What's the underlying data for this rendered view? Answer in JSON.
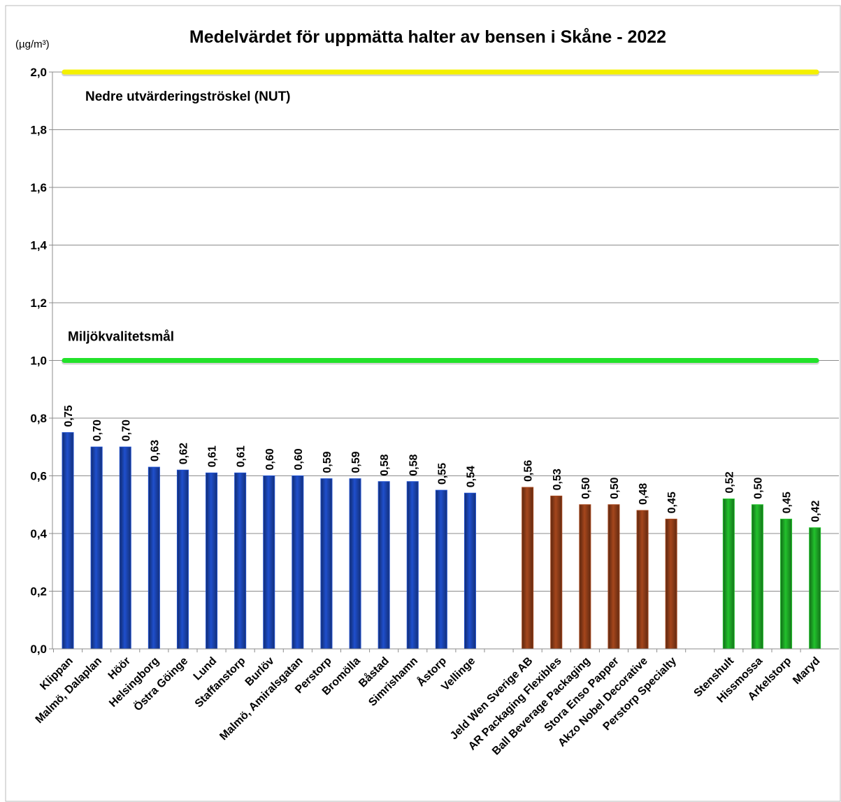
{
  "chart_data": {
    "type": "bar",
    "title": "Medelvärdet för uppmätta halter av bensen i Skåne - 2022",
    "y_axis_label": "(µg/m³)",
    "categories": [
      "Klippan",
      "Malmö, Dalaplan",
      "Höör",
      "Helsingborg",
      "Östra Göinge",
      "Lund",
      "Staffanstorp",
      "Burlöv",
      "Malmö, Amiralsgatan",
      "Perstorp",
      "Bromölla",
      "Båstad",
      "Simrishamn",
      "Åstorp",
      "Vellinge",
      null,
      "Jeld Wen Sverige AB",
      "AR Packaging Flexibles",
      "Ball Beverage Packaging",
      "Stora Enso Papper",
      "Akzo Nobel Decorative",
      "Perstorp Specialty",
      null,
      "Stenshult",
      "Hissmossa",
      "Arkelstorp",
      "Maryd"
    ],
    "series": [
      {
        "color": "#1f4fcc",
        "values": [
          0.75,
          0.7,
          0.7,
          0.63,
          0.62,
          0.61,
          0.61,
          0.6,
          0.6,
          0.59,
          0.59,
          0.58,
          0.58,
          0.55,
          0.54,
          null,
          null,
          null,
          null,
          null,
          null,
          null,
          null,
          null,
          null,
          null,
          null
        ],
        "value_labels": [
          "0,75",
          "0,70",
          "0,70",
          "0,63",
          "0,62",
          "0,61",
          "0,61",
          "0,60",
          "0,60",
          "0,59",
          "0,59",
          "0,58",
          "0,58",
          "0,55",
          "0,54",
          null,
          null,
          null,
          null,
          null,
          null,
          null,
          null,
          null,
          null,
          null,
          null
        ]
      },
      {
        "color": "#a5461c",
        "values": [
          null,
          null,
          null,
          null,
          null,
          null,
          null,
          null,
          null,
          null,
          null,
          null,
          null,
          null,
          null,
          null,
          0.56,
          0.53,
          0.5,
          0.5,
          0.48,
          0.45,
          null,
          null,
          null,
          null,
          null
        ],
        "value_labels": [
          null,
          null,
          null,
          null,
          null,
          null,
          null,
          null,
          null,
          null,
          null,
          null,
          null,
          null,
          null,
          null,
          "0,56",
          "0,53",
          "0,50",
          "0,50",
          "0,48",
          "0,45",
          null,
          null,
          null,
          null,
          null
        ]
      },
      {
        "color": "#22c12c",
        "values": [
          null,
          null,
          null,
          null,
          null,
          null,
          null,
          null,
          null,
          null,
          null,
          null,
          null,
          null,
          null,
          null,
          null,
          null,
          null,
          null,
          null,
          null,
          null,
          0.52,
          0.5,
          0.45,
          0.42
        ],
        "value_labels": [
          null,
          null,
          null,
          null,
          null,
          null,
          null,
          null,
          null,
          null,
          null,
          null,
          null,
          null,
          null,
          null,
          null,
          null,
          null,
          null,
          null,
          null,
          null,
          "0,52",
          "0,50",
          "0,45",
          "0,42"
        ]
      }
    ],
    "reference_lines": [
      {
        "label": "Nedre utvärderingströskel (NUT)",
        "value": 2.0,
        "color": "#f4f000"
      },
      {
        "label": "Miljökvalitetsmål",
        "value": 1.0,
        "color": "#22e22a"
      }
    ],
    "ylim": [
      0,
      2
    ],
    "yticks": [
      {
        "value": 0,
        "label": "0,0"
      },
      {
        "value": 0.2,
        "label": "0,2"
      },
      {
        "value": 0.4,
        "label": "0,4"
      },
      {
        "value": 0.6,
        "label": "0,6"
      },
      {
        "value": 0.8,
        "label": "0,8"
      },
      {
        "value": 1.0,
        "label": "1,0"
      },
      {
        "value": 1.2,
        "label": "1,2"
      },
      {
        "value": 1.4,
        "label": "1,4"
      },
      {
        "value": 1.6,
        "label": "1,6"
      },
      {
        "value": 1.8,
        "label": "1,8"
      },
      {
        "value": 2.0,
        "label": "2,0"
      }
    ],
    "grid": true
  }
}
